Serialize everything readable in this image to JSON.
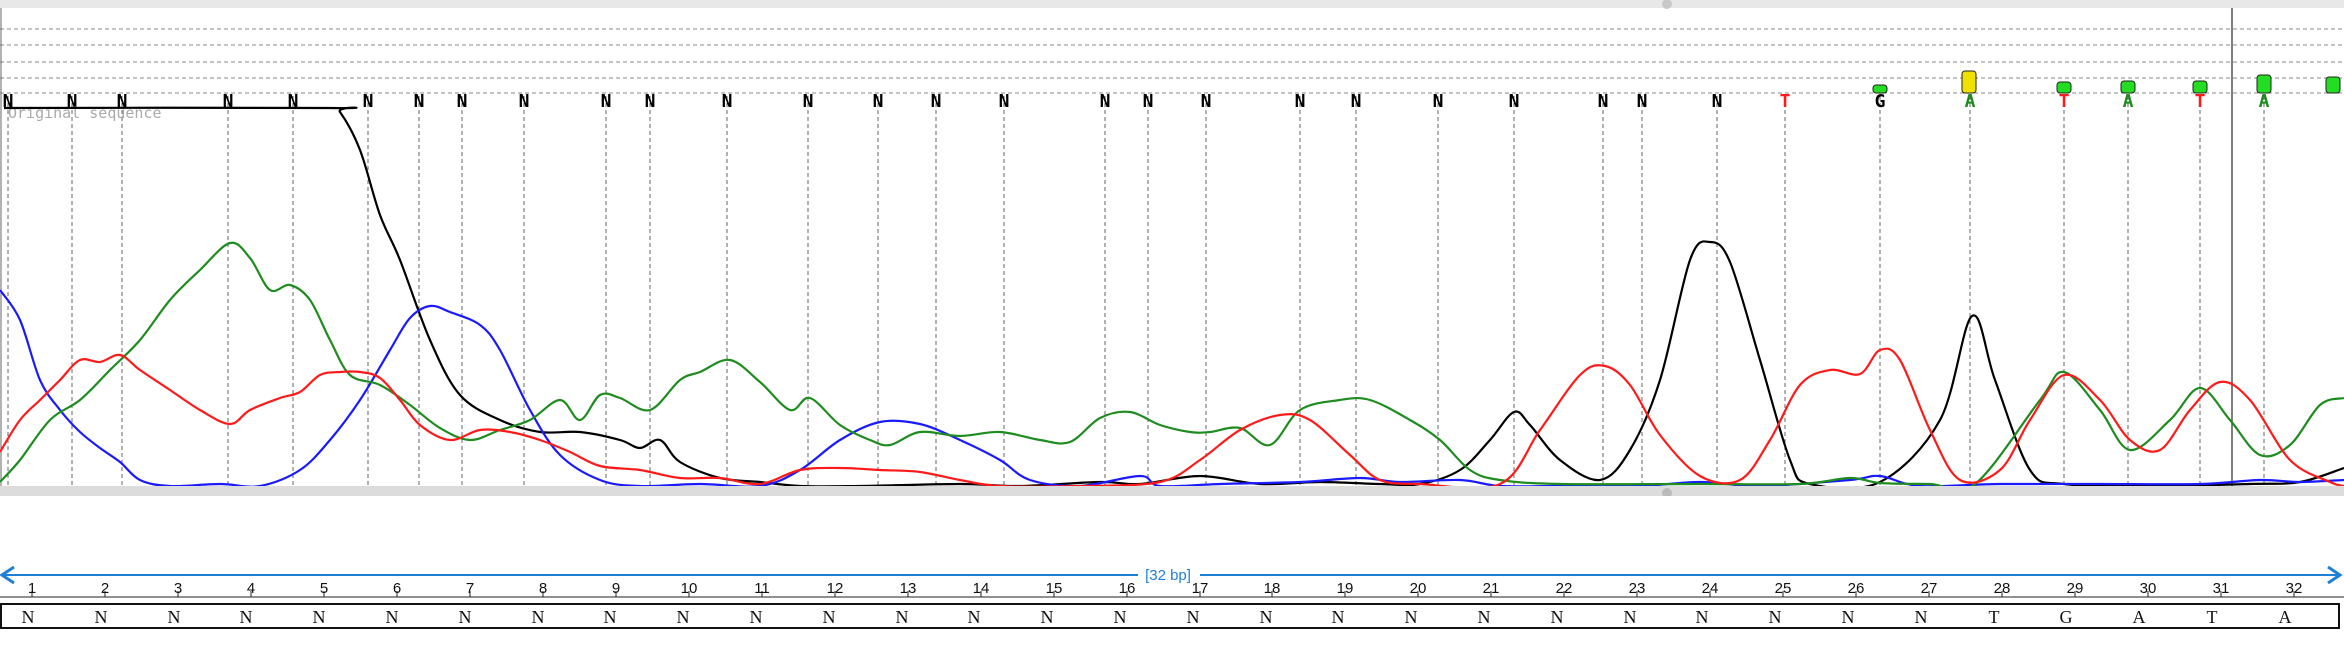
{
  "viewer": {
    "original_sequence_label": "Original sequence",
    "length_label": "[32 bp]",
    "base_colors": {
      "A": "#1e8c1e",
      "C": "#1a1aff",
      "G": "#000000",
      "T": "#ff1a1a",
      "N": "#000000"
    },
    "trace_colors": {
      "A": "#1e8c1e",
      "C": "#1a1aff",
      "G": "#000000",
      "T": "#ff1a1a"
    },
    "accent": "#1e7fd6",
    "quality_colors": {
      "high": "#22dd22",
      "medium": "#f0e000"
    }
  },
  "called_bases": [
    "N",
    "N",
    "N",
    "N",
    "N",
    "N",
    "N",
    "N",
    "N",
    "N",
    "N",
    "N",
    "N",
    "N",
    "N",
    "N",
    "N",
    "N",
    "N",
    "N",
    "N",
    "N",
    "N",
    "N",
    "N",
    "N",
    "T",
    "G",
    "A",
    "T",
    "A",
    "T",
    "A"
  ],
  "ruler": {
    "positions": [
      "1",
      "2",
      "3",
      "4",
      "5",
      "6",
      "7",
      "8",
      "9",
      "10",
      "11",
      "12",
      "13",
      "14",
      "15",
      "16",
      "17",
      "18",
      "19",
      "20",
      "21",
      "22",
      "23",
      "24",
      "25",
      "26",
      "27",
      "28",
      "29",
      "30",
      "31",
      "32"
    ]
  },
  "sequence": [
    "N",
    "N",
    "N",
    "N",
    "N",
    "N",
    "N",
    "N",
    "N",
    "N",
    "N",
    "N",
    "N",
    "N",
    "N",
    "N",
    "N",
    "N",
    "N",
    "N",
    "N",
    "N",
    "N",
    "N",
    "N",
    "N",
    "N",
    "T",
    "G",
    "A",
    "T",
    "A"
  ]
}
